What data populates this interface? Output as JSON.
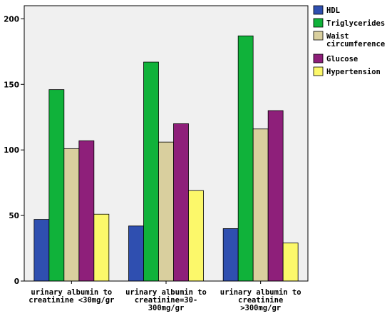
{
  "chart_data": {
    "type": "bar",
    "categories": [
      [
        "urinary albumin to",
        "creatinine <30mg/gr"
      ],
      [
        "urinary albumin to",
        "creatinine=30-",
        "300mg/gr"
      ],
      [
        "urinary albumin to",
        "creatinine",
        ">300mg/gr"
      ]
    ],
    "series": [
      {
        "name": "HDL",
        "values": [
          47,
          42,
          40
        ],
        "color": "#2f4fb0"
      },
      {
        "name": "Triglycerides",
        "values": [
          146,
          167,
          187
        ],
        "color": "#10b23a"
      },
      {
        "name": "Waist circumference",
        "legend_lines": [
          "Waist",
          "circumference"
        ],
        "values": [
          101,
          106,
          116
        ],
        "color": "#d9cf9e"
      },
      {
        "name": "Glucose",
        "values": [
          107,
          120,
          130
        ],
        "color": "#8e1f7a"
      },
      {
        "name": "Hypertension",
        "values": [
          51,
          69,
          29
        ],
        "color": "#fcf86a"
      }
    ],
    "ylim": [
      0,
      210
    ],
    "yticks": [
      0,
      50,
      100,
      150,
      200
    ],
    "title": "",
    "xlabel": "",
    "ylabel": "",
    "grid": false,
    "legend": "right",
    "plot_background": "#f0f0f0"
  }
}
